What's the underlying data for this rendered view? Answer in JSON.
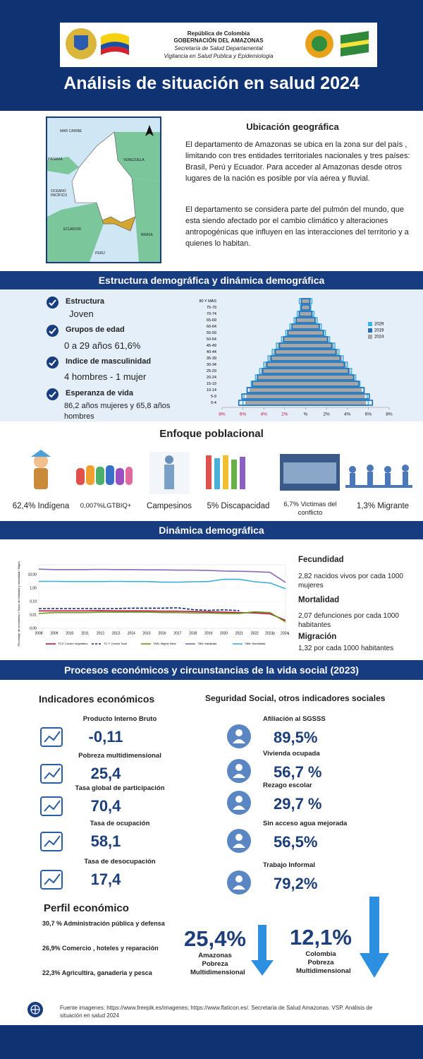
{
  "header": {
    "logo_text": [
      "República de Colombia",
      "GOBERNACIÓN DEL AMAZONAS",
      "Secretaría de Salud Departamental",
      "Vigilancia en Salud Publica y Epidemiologia"
    ],
    "title": "Análisis de situación en salud 2024"
  },
  "location": {
    "map_labels": [
      "MAR CARIBE",
      "PANAMÁ",
      "VENEZUELA",
      "OCÉANO PACÍFICO",
      "ECUADOR",
      "BRASIL",
      "PERÚ"
    ],
    "heading": "Ubicación geográfica",
    "paragraphs": [
      "El departamento de Amazonas se ubica en la zona sur del país , limitando con tres entidades territoriales nacionales y  tres países: Brasil, Perú y Ecuador.  Para acceder al Amazonas desde otros lugares de la nación es posible por vía aérea y fluvial.",
      "El departamento se considera parte del pulmón del mundo,  que esta siendo afectado por el cambio climático y alteraciones antropogénicas que  influyen en las interacciones del territorio y  a quienes lo habitan."
    ]
  },
  "demography": {
    "banner": "Estructura demográfica y dinámica demográfica",
    "items": [
      {
        "label": "Estructura",
        "value": "Joven"
      },
      {
        "label": "Grupos de edad",
        "value": "0 a 29 años  61,6%"
      },
      {
        "label": "Indice de masculinidad",
        "value": "4 hombres - 1 mujer"
      },
      {
        "label": "Esperanza de vida",
        "value": "86,2 años mujeres y  65,8 años hombres"
      }
    ],
    "chart_data": {
      "type": "pyramid",
      "categories": [
        "80 Y MÁS",
        "75-79",
        "70-74",
        "65-69",
        "60-64",
        "55-59",
        "50-54",
        "45-49",
        "40-44",
        "35-39",
        "30-34",
        "25-29",
        "20-24",
        "15-19",
        "10-14",
        "5-9",
        "0-4"
      ],
      "series": [
        {
          "name": "2029",
          "color": "#3fb3e6",
          "style": "outline",
          "values": [
            0.6,
            0.5,
            0.8,
            1.1,
            1.5,
            1.9,
            2.3,
            2.8,
            3.2,
            3.6,
            4.0,
            4.4,
            4.8,
            5.2,
            5.6,
            5.9,
            6.0
          ]
        },
        {
          "name": "2019",
          "color": "#1f6fb8",
          "style": "outline",
          "values": [
            0.4,
            0.4,
            0.6,
            0.9,
            1.3,
            1.7,
            2.1,
            2.5,
            2.9,
            3.3,
            3.7,
            4.1,
            4.6,
            5.1,
            5.6,
            6.1,
            6.4
          ]
        },
        {
          "name": "2024",
          "color": "#a6a6a6",
          "style": "fill",
          "values": [
            0.5,
            0.5,
            0.7,
            1.0,
            1.4,
            1.8,
            2.2,
            2.7,
            3.1,
            3.5,
            3.9,
            4.3,
            4.7,
            5.1,
            5.4,
            5.7,
            5.8
          ]
        }
      ],
      "xlim": [
        -8,
        8
      ],
      "xticks": [
        {
          "value": -8,
          "label": "8%"
        },
        {
          "value": -6,
          "label": "6%"
        },
        {
          "value": -4,
          "label": "4%"
        },
        {
          "value": -2,
          "label": "2%"
        },
        {
          "value": 0,
          "label": "%"
        },
        {
          "value": 2,
          "label": "2%"
        },
        {
          "value": 4,
          "label": "4%"
        },
        {
          "value": 6,
          "label": "6%"
        },
        {
          "value": 8,
          "label": "8%"
        }
      ],
      "legend": "right"
    }
  },
  "population": {
    "heading": "Enfoque  poblacional",
    "groups": [
      "62,4% Indígena",
      "0,007%LGTBIQ+",
      "Campesinos",
      "5% Discapacidad",
      "6,7% Victimas del conflicto",
      "1,3% Migrante"
    ]
  },
  "dynamics": {
    "banner": "Dinámica demográfica",
    "chart_data": {
      "type": "line",
      "y_label": "Porcentaje de crecimiento / Tasas de natalidad y mortalidad / Migración Neta",
      "categories": [
        "2008",
        "2009",
        "2010",
        "2011",
        "2012",
        "2013",
        "2014",
        "2015",
        "2016",
        "2017",
        "2018",
        "2019",
        "2020",
        "2021",
        "2022",
        "2023p",
        "2024p"
      ],
      "log_scale": true,
      "ylim": [
        0.001,
        30
      ],
      "yticks": [
        {
          "value": 10,
          "label": "10,00"
        },
        {
          "value": 1,
          "label": "1,00"
        },
        {
          "value": 0.1,
          "label": "0,10"
        },
        {
          "value": 0.01,
          "label": "0,01"
        },
        {
          "value": 0.001,
          "label": "0,00"
        }
      ],
      "series": [
        {
          "name": "TCV: Crecim Vegetativo",
          "color": "#c0143c",
          "dash": false,
          "values": [
            0.02,
            0.02,
            0.02,
            0.02,
            0.021,
            0.02,
            0.02,
            0.02,
            0.019,
            0.019,
            0.018,
            0.017,
            0.016,
            0.015,
            0.014,
            0.012,
            0.004
          ]
        },
        {
          "name": "TC T: Crecim Total",
          "color": "#0b2a7a",
          "dash": true,
          "values": [
            0.03,
            0.03,
            0.03,
            0.03,
            0.03,
            0.03,
            0.032,
            0.032,
            0.032,
            0.034,
            0.025,
            0.022,
            0.024,
            0.021,
            null,
            null,
            null
          ]
        },
        {
          "name": "TMN: Migrac Neta",
          "color": "#6a9a1f",
          "dash": false,
          "values": [
            0.013,
            0.015,
            0.015,
            0.015,
            0.016,
            0.016,
            0.016,
            0.016,
            0.015,
            0.015,
            0.014,
            0.014,
            0.013,
            0.013,
            0.017,
            0.015,
            0.003
          ]
        },
        {
          "name": "TBN: Natalidad",
          "color": "#8b6bb0",
          "dash": false,
          "values": [
            26,
            24,
            24,
            24,
            25,
            24,
            24,
            23,
            23,
            22,
            22,
            21,
            19,
            18,
            17,
            15,
            2.7
          ]
        },
        {
          "name": "TBM: Mortalidad",
          "color": "#3ab0d8",
          "dash": false,
          "values": [
            3.2,
            3.2,
            3.1,
            3.1,
            3.1,
            3.2,
            3.1,
            3.1,
            2.8,
            2.8,
            3.0,
            3.1,
            4.6,
            4.5,
            3.0,
            2.4,
            0.9
          ]
        }
      ],
      "legend": "bottom"
    },
    "indicators": [
      {
        "label": "Fecundidad",
        "text": "2,82 nacidos vivos por cada 1000 mujeres"
      },
      {
        "label": "Mortalidad",
        "text": "2,07 defunciones  por cada 1000 habitantes"
      },
      {
        "label": "Migración",
        "text": "1,32  por cada 1000 habitantes"
      }
    ]
  },
  "economy": {
    "banner": "Procesos económicos y circunstancias de la vida social (2023)",
    "left_heading": "Indicadores económicos",
    "indicators": [
      {
        "label": "Producto Interno Bruto",
        "value": "-0,11"
      },
      {
        "label": "Pobreza multidimensional",
        "value": "25,4"
      },
      {
        "label": "Tasa global de participación",
        "value": "70,4"
      },
      {
        "label": "Tasa de ocupación",
        "value": "58,1"
      },
      {
        "label": "Tasa de desocupación",
        "value": "17,4"
      }
    ],
    "right_heading": "Seguridad Social, otros indicadores sociales",
    "social": [
      {
        "label": "Afiliación al SGSSS",
        "value": "89,5%"
      },
      {
        "label": "Vivienda ocupada",
        "value": "56,7 %"
      },
      {
        "label": "Rezago escolar",
        "value": "29,7 %"
      },
      {
        "label": "Sin acceso agua mejorada",
        "value": "56,5%"
      },
      {
        "label": "Trabajo Informal",
        "value": "79,2%"
      }
    ],
    "profile_heading": "Perfil económico",
    "profile": [
      "30,7 %  Administración pública y defensa",
      "26,9% Comercio , hoteles y reparación",
      "22,3% Agricultira, ganaderia y pesca"
    ],
    "poverty": [
      {
        "value": "25,4%",
        "label": "Amazonas Pobreza Multidimensional"
      },
      {
        "value": "12,1%",
        "label": "Colombia Pobreza Multidimensional"
      }
    ]
  },
  "footer": {
    "source": "Fuente imagenes: https://www.freepik.es/imagenes; https://www.flaticon.es/. Secretaria de Salud Amazonas. VSP. Análisis de situación en salud 2024"
  }
}
